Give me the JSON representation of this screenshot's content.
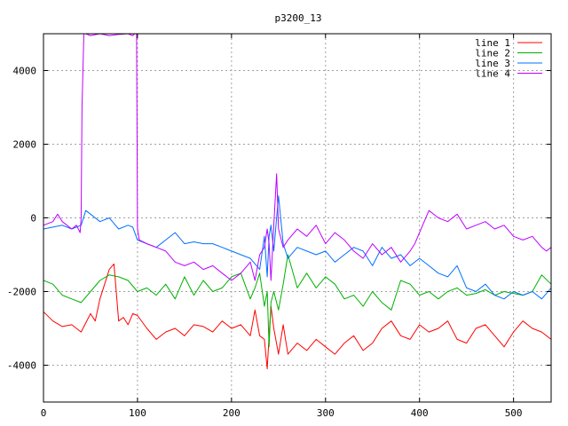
{
  "chart_data": {
    "type": "line",
    "title": "p3200_13",
    "xlabel": "",
    "ylabel": "",
    "xlim": [
      0,
      540
    ],
    "ylim": [
      -5000,
      5000
    ],
    "x_ticks": [
      0,
      100,
      200,
      300,
      400,
      500
    ],
    "y_ticks": [
      -4000,
      -2000,
      0,
      2000,
      4000
    ],
    "grid": true,
    "legend_position": "top-right",
    "series": [
      {
        "name": "line 1",
        "color": "#ff0000",
        "x": [
          0,
          10,
          20,
          30,
          40,
          50,
          55,
          60,
          65,
          70,
          75,
          80,
          85,
          90,
          95,
          100,
          110,
          120,
          130,
          140,
          150,
          160,
          170,
          180,
          190,
          200,
          210,
          220,
          225,
          230,
          235,
          238,
          240,
          242,
          245,
          250,
          255,
          260,
          270,
          280,
          290,
          300,
          310,
          320,
          330,
          340,
          350,
          360,
          370,
          380,
          390,
          400,
          410,
          420,
          430,
          440,
          450,
          460,
          470,
          480,
          490,
          500,
          510,
          520,
          530,
          540
        ],
        "values": [
          -2550,
          -2800,
          -2950,
          -2900,
          -3100,
          -2600,
          -2800,
          -2200,
          -1800,
          -1400,
          -1250,
          -2800,
          -2700,
          -2900,
          -2600,
          -2650,
          -3000,
          -3300,
          -3100,
          -3000,
          -3200,
          -2900,
          -2950,
          -3100,
          -2800,
          -3000,
          -2900,
          -3200,
          -2500,
          -3200,
          -3300,
          -4100,
          -3200,
          -2400,
          -3000,
          -3700,
          -2900,
          -3700,
          -3400,
          -3600,
          -3300,
          -3500,
          -3700,
          -3400,
          -3200,
          -3600,
          -3400,
          -3000,
          -2800,
          -3200,
          -3300,
          -2900,
          -3100,
          -3000,
          -2800,
          -3300,
          -3400,
          -3000,
          -2900,
          -3200,
          -3500,
          -3100,
          -2800,
          -3000,
          -3100,
          -3300
        ]
      },
      {
        "name": "line 2",
        "color": "#00b000",
        "x": [
          0,
          10,
          20,
          30,
          40,
          50,
          60,
          70,
          80,
          90,
          100,
          110,
          120,
          130,
          140,
          150,
          160,
          170,
          180,
          190,
          200,
          210,
          220,
          225,
          230,
          235,
          238,
          240,
          242,
          245,
          250,
          255,
          260,
          270,
          280,
          290,
          300,
          310,
          320,
          330,
          340,
          350,
          360,
          370,
          380,
          390,
          400,
          410,
          420,
          430,
          440,
          450,
          460,
          470,
          480,
          490,
          500,
          510,
          520,
          530,
          540
        ],
        "values": [
          -1700,
          -1800,
          -2100,
          -2200,
          -2300,
          -2000,
          -1700,
          -1550,
          -1600,
          -1700,
          -2000,
          -1900,
          -2100,
          -1800,
          -2200,
          -1600,
          -2100,
          -1700,
          -2000,
          -1900,
          -1600,
          -1500,
          -2200,
          -1900,
          -1500,
          -2400,
          -2000,
          -3500,
          -2300,
          -2000,
          -2500,
          -1800,
          -1000,
          -1900,
          -1500,
          -1900,
          -1600,
          -1800,
          -2200,
          -2100,
          -2400,
          -2000,
          -2300,
          -2500,
          -1700,
          -1800,
          -2100,
          -2000,
          -2200,
          -2000,
          -1900,
          -2100,
          -2050,
          -1950,
          -2100,
          -2000,
          -2050,
          -2100,
          -2000,
          -1550,
          -1800
        ]
      },
      {
        "name": "line 3",
        "color": "#0070ff",
        "x": [
          0,
          10,
          20,
          30,
          40,
          45,
          50,
          60,
          70,
          80,
          90,
          95,
          100,
          110,
          120,
          130,
          140,
          150,
          160,
          170,
          180,
          190,
          200,
          210,
          220,
          230,
          235,
          238,
          240,
          242,
          245,
          250,
          255,
          260,
          270,
          280,
          290,
          300,
          310,
          320,
          330,
          340,
          350,
          360,
          370,
          380,
          390,
          400,
          410,
          420,
          430,
          440,
          450,
          460,
          470,
          480,
          490,
          500,
          510,
          520,
          530,
          540
        ],
        "values": [
          -300,
          -250,
          -200,
          -300,
          -200,
          200,
          100,
          -100,
          0,
          -300,
          -200,
          -250,
          -600,
          -700,
          -800,
          -600,
          -400,
          -700,
          -650,
          -700,
          -700,
          -800,
          -900,
          -1000,
          -1100,
          -1400,
          -500,
          -1600,
          -500,
          -200,
          -900,
          600,
          -700,
          -1100,
          -800,
          -900,
          -1000,
          -900,
          -1200,
          -1000,
          -800,
          -900,
          -1300,
          -800,
          -1100,
          -1000,
          -1300,
          -1100,
          -1300,
          -1500,
          -1600,
          -1300,
          -1900,
          -2000,
          -1800,
          -2100,
          -2200,
          -2000,
          -2100,
          -2000,
          -2200,
          -1900
        ]
      },
      {
        "name": "line 4",
        "color": "#c000ff",
        "x": [
          0,
          10,
          15,
          20,
          25,
          30,
          35,
          39,
          40,
          41,
          43,
          45,
          50,
          60,
          70,
          80,
          90,
          95,
          97,
          99,
          100,
          102,
          110,
          120,
          130,
          140,
          150,
          160,
          170,
          180,
          190,
          200,
          210,
          220,
          225,
          230,
          235,
          238,
          240,
          242,
          245,
          248,
          250,
          255,
          260,
          270,
          280,
          290,
          300,
          310,
          320,
          330,
          340,
          350,
          360,
          370,
          380,
          390,
          395,
          400,
          410,
          420,
          430,
          440,
          450,
          460,
          470,
          480,
          490,
          500,
          510,
          520,
          530,
          535,
          540
        ],
        "values": [
          -200,
          -100,
          100,
          -100,
          -200,
          -300,
          -200,
          -400,
          0,
          3000,
          5000,
          5000,
          4950,
          5000,
          4950,
          4980,
          5000,
          4950,
          5000,
          5000,
          -300,
          -600,
          -700,
          -800,
          -900,
          -1200,
          -1300,
          -1200,
          -1400,
          -1300,
          -1500,
          -1700,
          -1500,
          -1200,
          -1700,
          -1000,
          -800,
          -300,
          -700,
          -1700,
          -200,
          1200,
          -300,
          -800,
          -600,
          -300,
          -500,
          -200,
          -700,
          -400,
          -600,
          -900,
          -1100,
          -700,
          -1000,
          -800,
          -1200,
          -900,
          -700,
          -400,
          200,
          0,
          -100,
          100,
          -300,
          -200,
          -100,
          -300,
          -200,
          -500,
          -600,
          -500,
          -800,
          -900,
          -800
        ]
      }
    ]
  }
}
